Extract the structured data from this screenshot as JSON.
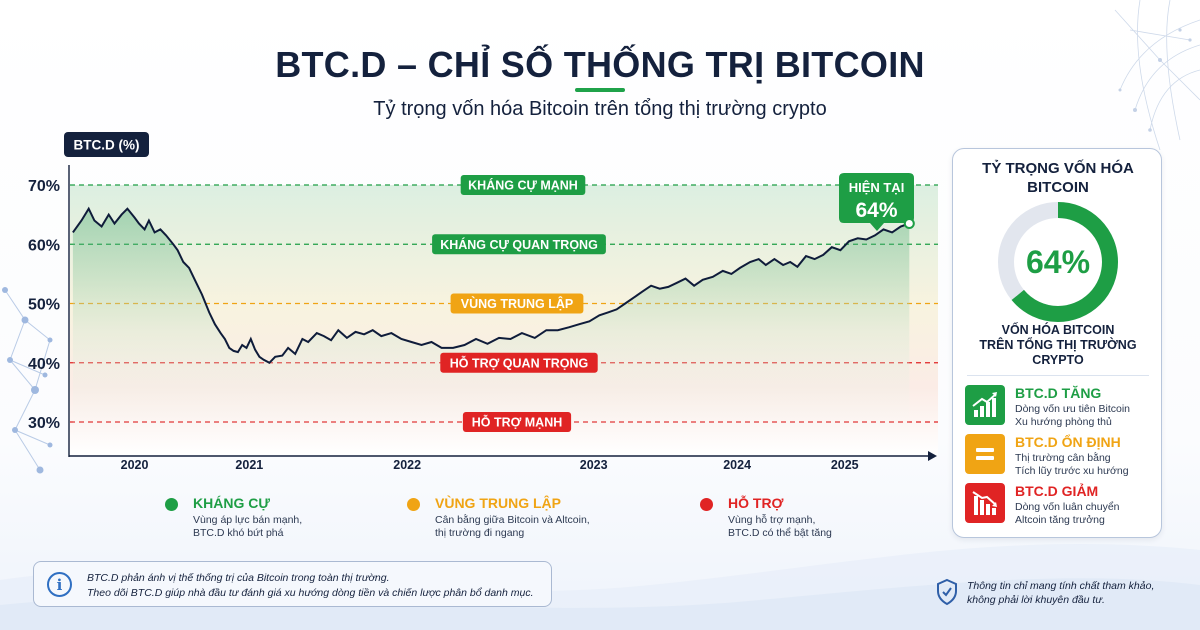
{
  "header": {
    "title": "BTC.D – CHỈ SỐ THỐNG TRỊ BITCOIN",
    "subtitle": "Tỷ trọng vốn hóa Bitcoin trên tổng thị trường crypto"
  },
  "chart_data": {
    "type": "line",
    "ylabel": "BTC.D (%)",
    "ylim": [
      25,
      72
    ],
    "xlim": [
      2019.55,
      2025.6
    ],
    "y_ticks": [
      "70%",
      "60%",
      "50%",
      "40%",
      "30%"
    ],
    "y_tick_values": [
      70,
      60,
      50,
      40,
      30
    ],
    "x_ticks": [
      "2020",
      "2021",
      "2022",
      "2023",
      "2024",
      "2025"
    ],
    "x_tick_values": [
      2020.0,
      2020.8,
      2021.9,
      2023.2,
      2024.2,
      2024.95
    ],
    "grid": false,
    "series": [
      {
        "color": "#0f1c3a",
        "points": [
          [
            2019.57,
            62
          ],
          [
            2019.63,
            64
          ],
          [
            2019.68,
            66
          ],
          [
            2019.72,
            64
          ],
          [
            2019.77,
            63
          ],
          [
            2019.82,
            65
          ],
          [
            2019.86,
            63.5
          ],
          [
            2019.91,
            65
          ],
          [
            2019.95,
            66
          ],
          [
            2020.0,
            64.5
          ],
          [
            2020.03,
            63.5
          ],
          [
            2020.07,
            62.5
          ],
          [
            2020.1,
            64
          ],
          [
            2020.14,
            62
          ],
          [
            2020.18,
            62.5
          ],
          [
            2020.22,
            61.5
          ],
          [
            2020.27,
            60
          ],
          [
            2020.3,
            59
          ],
          [
            2020.34,
            57
          ],
          [
            2020.38,
            56
          ],
          [
            2020.42,
            54
          ],
          [
            2020.47,
            51.5
          ],
          [
            2020.52,
            48.5
          ],
          [
            2020.56,
            46.5
          ],
          [
            2020.6,
            45
          ],
          [
            2020.63,
            44
          ],
          [
            2020.66,
            42.5
          ],
          [
            2020.69,
            42
          ],
          [
            2020.72,
            41.8
          ],
          [
            2020.75,
            43
          ],
          [
            2020.78,
            42.5
          ],
          [
            2020.81,
            44
          ],
          [
            2020.84,
            42.2
          ],
          [
            2020.87,
            41
          ],
          [
            2020.9,
            40.5
          ],
          [
            2020.94,
            40
          ],
          [
            2020.98,
            41
          ],
          [
            2021.03,
            41.2
          ],
          [
            2021.07,
            42.5
          ],
          [
            2021.12,
            41.5
          ],
          [
            2021.17,
            44
          ],
          [
            2021.21,
            43.5
          ],
          [
            2021.27,
            45
          ],
          [
            2021.32,
            44.5
          ],
          [
            2021.37,
            43.8
          ],
          [
            2021.42,
            45.5
          ],
          [
            2021.48,
            44.2
          ],
          [
            2021.54,
            45.2
          ],
          [
            2021.6,
            44.8
          ],
          [
            2021.66,
            45.5
          ],
          [
            2021.72,
            44.5
          ],
          [
            2021.79,
            45
          ],
          [
            2021.86,
            44
          ],
          [
            2021.93,
            43.5
          ],
          [
            2022.0,
            43
          ],
          [
            2022.07,
            43.5
          ],
          [
            2022.14,
            42.5
          ],
          [
            2022.22,
            42.5
          ],
          [
            2022.3,
            43
          ],
          [
            2022.38,
            44
          ],
          [
            2022.46,
            43.2
          ],
          [
            2022.54,
            44.2
          ],
          [
            2022.62,
            44
          ],
          [
            2022.7,
            45
          ],
          [
            2022.79,
            44.2
          ],
          [
            2022.87,
            45.5
          ],
          [
            2022.95,
            45.5
          ],
          [
            2023.03,
            46
          ],
          [
            2023.1,
            46.5
          ],
          [
            2023.17,
            47
          ],
          [
            2023.24,
            48
          ],
          [
            2023.3,
            48.5
          ],
          [
            2023.36,
            49
          ],
          [
            2023.42,
            50
          ],
          [
            2023.48,
            51
          ],
          [
            2023.54,
            52
          ],
          [
            2023.6,
            53
          ],
          [
            2023.66,
            52.5
          ],
          [
            2023.72,
            52.8
          ],
          [
            2023.78,
            53.5
          ],
          [
            2023.84,
            54.2
          ],
          [
            2023.9,
            53
          ],
          [
            2023.96,
            54
          ],
          [
            2024.03,
            54.5
          ],
          [
            2024.1,
            55.5
          ],
          [
            2024.16,
            55
          ],
          [
            2024.22,
            56
          ],
          [
            2024.29,
            57
          ],
          [
            2024.35,
            57.5
          ],
          [
            2024.4,
            56.5
          ],
          [
            2024.46,
            57.5
          ],
          [
            2024.52,
            56.5
          ],
          [
            2024.57,
            57
          ],
          [
            2024.62,
            56.2
          ],
          [
            2024.68,
            58
          ],
          [
            2024.74,
            57.5
          ],
          [
            2024.8,
            58.2
          ],
          [
            2024.86,
            59.5
          ],
          [
            2024.92,
            59
          ],
          [
            2024.98,
            60.5
          ],
          [
            2025.04,
            61
          ],
          [
            2025.1,
            60.8
          ],
          [
            2025.16,
            61.5
          ],
          [
            2025.22,
            62.5
          ],
          [
            2025.28,
            62
          ],
          [
            2025.34,
            63
          ],
          [
            2025.4,
            63.5
          ]
        ]
      }
    ],
    "zones": [
      {
        "label": "KHÁNG CỰ MẠNH",
        "value": 70,
        "color": "#1e9e45",
        "style": "dashed"
      },
      {
        "label": "KHÁNG CỰ QUAN TRỌNG",
        "value": 60,
        "color": "#1e9e45",
        "style": "dashed"
      },
      {
        "label": "VÙNG TRUNG LẬP",
        "value": 50,
        "color": "#f0a414",
        "style": "dashed"
      },
      {
        "label": "HỖ TRỢ QUAN TRỌNG",
        "value": 40,
        "color": "#e02424",
        "style": "dashed"
      },
      {
        "label": "HỖ TRỢ MẠNH",
        "value": 30,
        "color": "#e02424",
        "style": "dashed"
      }
    ],
    "current": {
      "label": "HIỆN TẠI",
      "value_label": "64%",
      "value": 64
    }
  },
  "side_panel": {
    "title_l1": "TỶ TRỌNG VỐN HÓA",
    "title_l2": "BITCOIN",
    "donut_value": "64%",
    "donut_fraction": 0.64,
    "caption_l1": "VỐN HÓA BITCOIN",
    "caption_l2": "TRÊN TỔNG THỊ TRƯỜNG",
    "caption_l3": "CRYPTO",
    "stats": [
      {
        "title": "BTC.D TĂNG",
        "line1": "Dòng vốn ưu tiên Bitcoin",
        "line2": "Xu hướng phòng thủ",
        "color": "#1e9e45",
        "icon": "chart-up-icon"
      },
      {
        "title": "BTC.D ỔN ĐỊNH",
        "line1": "Thị trường cân bằng",
        "line2": "Tích lũy trước xu hướng",
        "color": "#f0a414",
        "icon": "equals-icon"
      },
      {
        "title": "BTC.D GIẢM",
        "line1": "Dòng vốn luân chuyển",
        "line2": "Altcoin tăng trưởng",
        "color": "#e02424",
        "icon": "chart-down-icon"
      }
    ]
  },
  "legend": [
    {
      "title": "KHÁNG CỰ",
      "line1": "Vùng áp lực bán mạnh,",
      "line2": "BTC.D khó bứt phá",
      "color": "#1e9e45"
    },
    {
      "title": "VÙNG TRUNG LẬP",
      "line1": "Cân bằng giữa Bitcoin và Altcoin,",
      "line2": "thị trường đi ngang",
      "color": "#f0a414"
    },
    {
      "title": "HỖ TRỢ",
      "line1": "Vùng hỗ trợ mạnh,",
      "line2": "BTC.D có thể bật tăng",
      "color": "#e02424"
    }
  ],
  "info": {
    "line1": "BTC.D phản ánh vị thế thống trị của Bitcoin trong toàn thị trường.",
    "line2": "Theo dõi BTC.D giúp nhà đầu tư đánh giá xu hướng dòng tiền và chiến lược phân bổ danh mục."
  },
  "disclaimer": {
    "line1": "Thông tin chỉ mang tính chất tham khảo,",
    "line2": "không phải lời khuyên đầu tư."
  }
}
